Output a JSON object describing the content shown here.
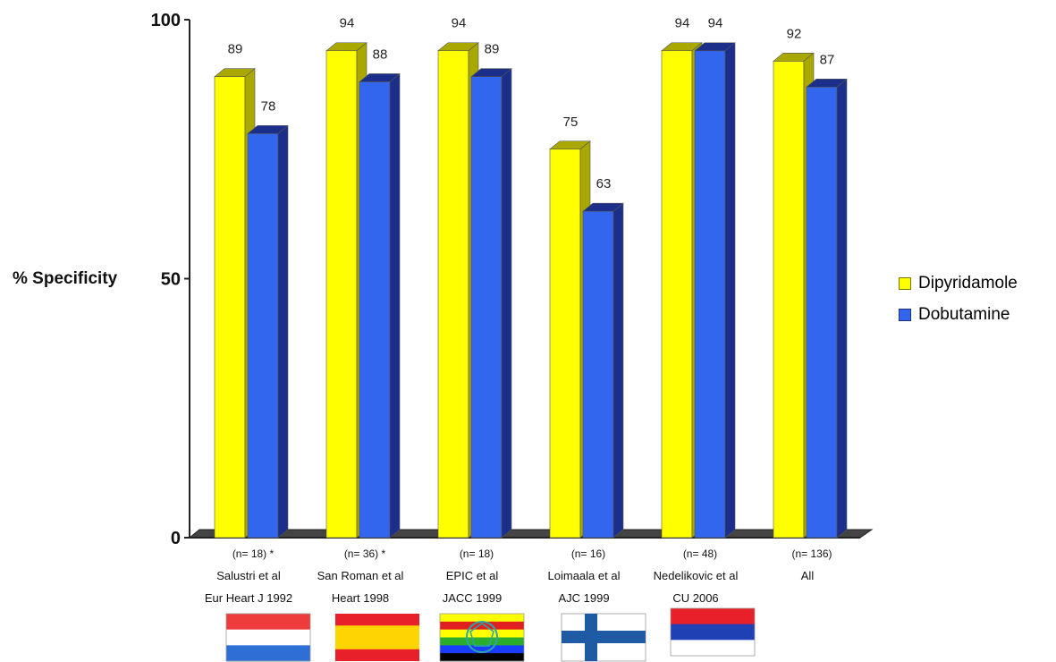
{
  "chart_data": {
    "type": "bar",
    "ylabel": "% Specificity",
    "ylim": [
      0,
      100
    ],
    "yticks": [
      "0",
      "50",
      "100"
    ],
    "ytick_values": [
      0,
      50,
      100
    ],
    "categories": [
      {
        "n": "(n= 18) *",
        "line1": "Salustri et al",
        "line2": "Eur Heart J 1992"
      },
      {
        "n": "(n= 36) *",
        "line1": "San Roman et al",
        "line2": "Heart 1998"
      },
      {
        "n": "(n= 18)",
        "line1": "EPIC et al",
        "line2": "JACC 1999"
      },
      {
        "n": "(n= 16)",
        "line1": "Loimaala et al",
        "line2": "AJC 1999"
      },
      {
        "n": "(n= 48)",
        "line1": "Nedelikovic et al",
        "line2": "CU 2006"
      },
      {
        "n": "(n= 136)",
        "line1": "All",
        "line2": ""
      }
    ],
    "series": [
      {
        "name": "Dipyridamole",
        "color": "#ffff00",
        "side": "#a8a800",
        "values": [
          89,
          94,
          94,
          75,
          94,
          92
        ]
      },
      {
        "name": "Dobutamine",
        "color": "#3366ee",
        "side": "#1a2e8a",
        "values": [
          78,
          88,
          89,
          63,
          94,
          87
        ]
      }
    ],
    "legend_position": "right",
    "flags": [
      "Netherlands",
      "Spain",
      "Brazil",
      "Finland",
      "Serbia"
    ]
  }
}
